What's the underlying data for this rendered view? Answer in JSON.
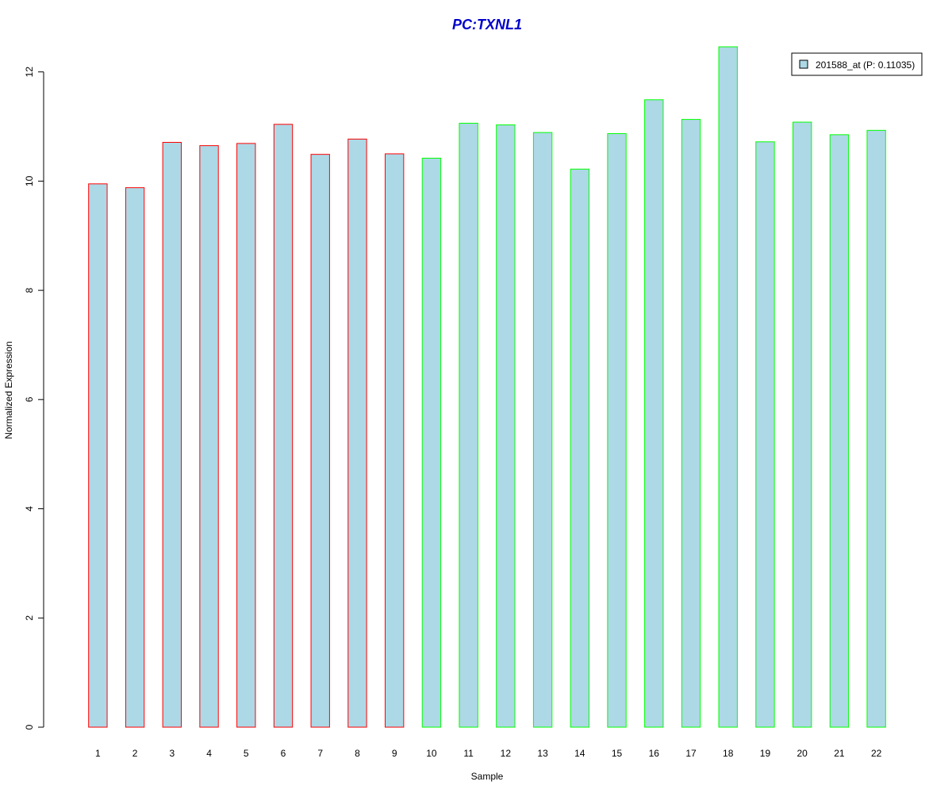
{
  "chart_data": {
    "type": "bar",
    "title": "PC:TXNL1",
    "xlabel": "Sample",
    "ylabel": "Normalized Expression",
    "categories": [
      "1",
      "2",
      "3",
      "4",
      "5",
      "6",
      "7",
      "8",
      "9",
      "10",
      "11",
      "12",
      "13",
      "14",
      "15",
      "16",
      "17",
      "18",
      "19",
      "20",
      "21",
      "22"
    ],
    "series": [
      {
        "name": "201588_at (P: 0.11035)",
        "values": [
          9.95,
          9.88,
          10.71,
          10.65,
          10.69,
          11.04,
          10.49,
          10.77,
          10.5,
          10.42,
          11.06,
          11.03,
          10.89,
          10.22,
          10.87,
          11.49,
          11.13,
          12.46,
          10.72,
          11.08,
          10.85,
          10.93
        ]
      }
    ],
    "groups": [
      "red",
      "red",
      "red",
      "red",
      "red",
      "red",
      "red",
      "red",
      "red",
      "green",
      "green",
      "green",
      "green",
      "green",
      "green",
      "green",
      "green",
      "green",
      "green",
      "green",
      "green",
      "green"
    ],
    "ylim": [
      0,
      12.46
    ],
    "yticks": [
      0,
      2,
      4,
      6,
      8,
      10,
      12
    ],
    "grid": false,
    "legend_position": "top-right",
    "colors": {
      "bar_fill": "#add8e6",
      "border_red": "#ff0000",
      "border_green": "#00ff00",
      "title": "#0000cc",
      "axis": "#000000"
    }
  }
}
